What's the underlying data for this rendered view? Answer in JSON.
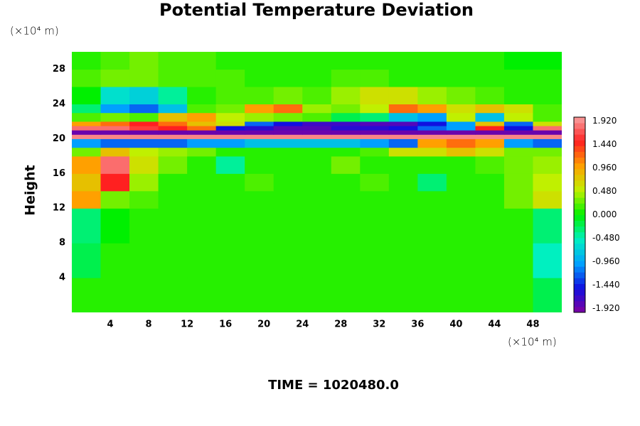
{
  "chart_data": {
    "type": "heatmap",
    "title": "Potential Temperature Deviation",
    "ylabel": "Height",
    "yunit": "(×10⁴ m)",
    "xunit": "(×10⁴ m)",
    "footer": "TIME = 1020480.0",
    "xlim": [
      0,
      51
    ],
    "ylim": [
      0,
      30
    ],
    "xticks": [
      4,
      8,
      12,
      16,
      20,
      24,
      28,
      32,
      36,
      40,
      44,
      48
    ],
    "yticks": [
      4,
      8,
      12,
      16,
      20,
      24,
      28
    ],
    "clim": [
      -2,
      2
    ],
    "cticks": [
      {
        "value": 1.92,
        "label": "1.920"
      },
      {
        "value": 1.44,
        "label": "1.440"
      },
      {
        "value": 0.96,
        "label": "0.960"
      },
      {
        "value": 0.48,
        "label": "0.480"
      },
      {
        "value": 0,
        "label": "0.000"
      },
      {
        "value": -0.48,
        "label": "-0.480"
      },
      {
        "value": -0.96,
        "label": "-0.960"
      },
      {
        "value": -1.44,
        "label": "-1.440"
      },
      {
        "value": -1.92,
        "label": "-1.920"
      }
    ],
    "colors": [
      "#8000a0",
      "#1010e0",
      "#00a0ff",
      "#00f0c0",
      "#00f000",
      "#c0f000",
      "#ffa000",
      "#ff2020",
      "#f8a0a0"
    ],
    "xbins": [
      0,
      3,
      6,
      9,
      12,
      15,
      18,
      21,
      24,
      27,
      30,
      33,
      36,
      39,
      42,
      45,
      48,
      51
    ],
    "ybins": [
      0,
      4,
      8,
      12,
      14,
      16,
      18,
      19,
      20,
      20.5,
      21,
      21.5,
      22,
      23,
      24,
      26,
      28,
      30
    ],
    "z": [
      [
        0.1,
        0.1,
        0.1,
        0.1,
        0.1,
        0.1,
        0.1,
        0.1,
        0.1,
        0.1,
        0.1,
        0.1,
        0.1,
        0.1,
        0.1,
        0.1,
        -0.2
      ],
      [
        -0.2,
        0.1,
        0.1,
        0.1,
        0.1,
        0.1,
        0.1,
        0.1,
        0.1,
        0.1,
        0.1,
        0.1,
        0.1,
        0.1,
        0.1,
        0.1,
        -0.5
      ],
      [
        -0.3,
        0,
        0.1,
        0.1,
        0.1,
        0.1,
        0.1,
        0.1,
        0.1,
        0.1,
        0.1,
        0.1,
        0.1,
        0.1,
        0.1,
        0.1,
        -0.3
      ],
      [
        1.0,
        0.3,
        0.2,
        0.1,
        0.1,
        0.1,
        0.1,
        0.1,
        0.1,
        0.1,
        0.1,
        0.1,
        0.1,
        0.1,
        0.1,
        0.3,
        0.6
      ],
      [
        0.8,
        1.5,
        0.4,
        0.1,
        0.1,
        0.1,
        0.2,
        0.1,
        0.1,
        0.1,
        0.2,
        0.1,
        -0.3,
        0.1,
        0.1,
        0.3,
        0.5
      ],
      [
        1.0,
        1.8,
        0.6,
        0.3,
        0.1,
        -0.4,
        0.1,
        0.1,
        0.1,
        0.3,
        0.1,
        0.1,
        0.1,
        0.1,
        0.2,
        0.3,
        0.4
      ],
      [
        0.3,
        0.8,
        0.5,
        0.4,
        0.3,
        0.1,
        0.1,
        0.1,
        0.1,
        0.1,
        0.2,
        0.6,
        0.6,
        0.8,
        0.6,
        0.3,
        0.3
      ],
      [
        -1.0,
        -1.2,
        -1.2,
        -1.2,
        -1.0,
        -1.0,
        -0.8,
        -0.8,
        -0.8,
        -0.8,
        -1.0,
        -1.2,
        1.0,
        1.2,
        1.0,
        -1.0,
        -1.2
      ],
      [
        1.9,
        1.9,
        1.9,
        1.9,
        1.9,
        1.9,
        1.9,
        1.9,
        1.9,
        1.9,
        1.9,
        1.9,
        1.9,
        1.9,
        1.9,
        1.9,
        1.9
      ],
      [
        -1.9,
        -1.9,
        -1.9,
        -1.9,
        -1.9,
        -1.9,
        -1.9,
        -1.9,
        -1.9,
        -1.9,
        -1.9,
        -1.9,
        -1.9,
        -1.9,
        -1.9,
        -1.9,
        -1.9
      ],
      [
        1.8,
        1.8,
        1.6,
        1.5,
        1.2,
        -1.5,
        -1.6,
        -1.8,
        -1.8,
        -1.6,
        -1.6,
        -1.5,
        -1.2,
        -1.0,
        1.5,
        -1.5,
        1.8
      ],
      [
        1.0,
        1.2,
        1.5,
        1.2,
        0.8,
        0.6,
        -1.2,
        -1.5,
        -1.7,
        -1.7,
        -1.8,
        -1.8,
        -1.5,
        -1.0,
        0.8,
        -1.2,
        0.6
      ],
      [
        0.2,
        0.3,
        0.2,
        0.8,
        1.0,
        0.5,
        0.4,
        0.3,
        0.2,
        -0.2,
        -0.3,
        -0.8,
        -1.0,
        0.5,
        -0.8,
        0.5,
        0.2
      ],
      [
        -0.3,
        -1.0,
        -1.2,
        -0.8,
        0.2,
        0.3,
        1.0,
        1.2,
        0.4,
        0.3,
        0.5,
        1.2,
        1.0,
        0.6,
        0.8,
        0.6,
        0.2
      ],
      [
        0,
        -0.6,
        -0.7,
        -0.4,
        0.1,
        0.2,
        0.2,
        0.3,
        0.2,
        0.4,
        0.6,
        0.6,
        0.4,
        0.3,
        0.2,
        0.1,
        0.1
      ],
      [
        0.2,
        0.3,
        0.3,
        0.2,
        0.2,
        0.2,
        0.1,
        0.1,
        0.1,
        0.2,
        0.2,
        0.1,
        0.1,
        0.1,
        0.1,
        0.1,
        0.1
      ],
      [
        0.1,
        0.2,
        0.3,
        0.2,
        0.2,
        0.1,
        0.1,
        0.1,
        0.1,
        0.1,
        0.1,
        0.1,
        0.1,
        0.1,
        0.1,
        0,
        0
      ]
    ]
  }
}
